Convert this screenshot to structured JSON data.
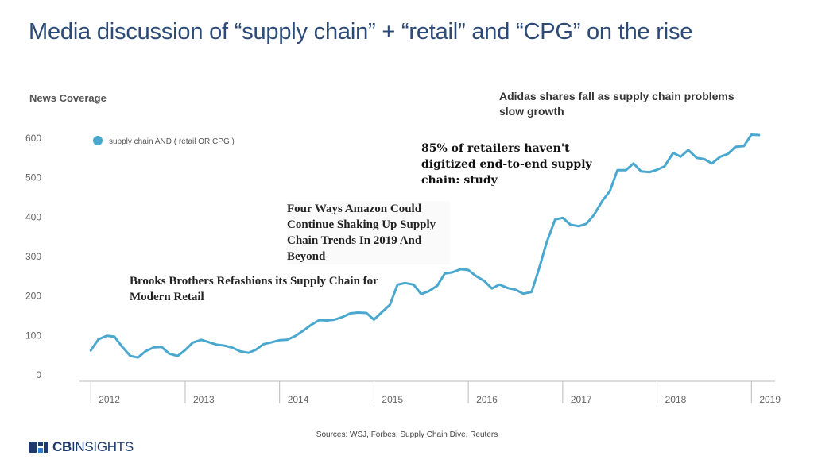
{
  "title": "Media discussion of “supply chain” + “retail” and “CPG” on the rise",
  "annotations": [
    {
      "text": "Brooks Brothers Refashions its Supply Chain for Modern Retail"
    },
    {
      "text": "Four Ways Amazon Could Continue Shaking Up Supply Chain Trends In 2019 And Beyond"
    },
    {
      "text": "85% of retailers haven't digitized end-to-end supply chain: study"
    },
    {
      "text": "Adidas shares fall as supply chain problems slow growth"
    }
  ],
  "sources": "Sources: WSJ, Forbes, Supply Chain Dive, Reuters",
  "logo": {
    "bold": "CB",
    "rest": "INSIGHTS"
  },
  "colors": {
    "title": "#2b4a78",
    "series": "#4aa8cf",
    "axis": "#bbbbbb",
    "tick_text": "#666666"
  },
  "chart_data": {
    "type": "line",
    "title": "",
    "subtitle": "News Coverage",
    "xlabel": "",
    "ylabel": "",
    "ylim": [
      0,
      600
    ],
    "yticks": [
      0,
      100,
      200,
      300,
      400,
      500,
      600
    ],
    "xlim": [
      2011.88,
      2019.25
    ],
    "xticks": [
      2012,
      2013,
      2014,
      2015,
      2016,
      2017,
      2018,
      2019
    ],
    "grid": false,
    "legend": {
      "position": "top-left"
    },
    "series": [
      {
        "name": "supply chain AND ( retail OR CPG )",
        "points": [
          [
            2012.0,
            62
          ],
          [
            2012.08,
            90
          ],
          [
            2012.17,
            99
          ],
          [
            2012.25,
            97
          ],
          [
            2012.33,
            72
          ],
          [
            2012.42,
            48
          ],
          [
            2012.5,
            44
          ],
          [
            2012.58,
            60
          ],
          [
            2012.67,
            70
          ],
          [
            2012.75,
            71
          ],
          [
            2012.83,
            54
          ],
          [
            2012.92,
            48
          ],
          [
            2013.0,
            63
          ],
          [
            2013.08,
            82
          ],
          [
            2013.17,
            89
          ],
          [
            2013.25,
            83
          ],
          [
            2013.33,
            77
          ],
          [
            2013.42,
            74
          ],
          [
            2013.5,
            69
          ],
          [
            2013.58,
            60
          ],
          [
            2013.67,
            56
          ],
          [
            2013.75,
            64
          ],
          [
            2013.83,
            78
          ],
          [
            2013.92,
            83
          ],
          [
            2014.0,
            88
          ],
          [
            2014.08,
            89
          ],
          [
            2014.17,
            99
          ],
          [
            2014.25,
            112
          ],
          [
            2014.33,
            126
          ],
          [
            2014.42,
            139
          ],
          [
            2014.5,
            138
          ],
          [
            2014.58,
            140
          ],
          [
            2014.67,
            147
          ],
          [
            2014.75,
            156
          ],
          [
            2014.83,
            158
          ],
          [
            2014.92,
            157
          ],
          [
            2015.0,
            140
          ],
          [
            2015.08,
            158
          ],
          [
            2015.17,
            178
          ],
          [
            2015.25,
            229
          ],
          [
            2015.33,
            233
          ],
          [
            2015.42,
            229
          ],
          [
            2015.5,
            205
          ],
          [
            2015.58,
            212
          ],
          [
            2015.67,
            226
          ],
          [
            2015.75,
            257
          ],
          [
            2015.83,
            260
          ],
          [
            2015.92,
            268
          ],
          [
            2016.0,
            266
          ],
          [
            2016.08,
            251
          ],
          [
            2016.17,
            238
          ],
          [
            2016.25,
            219
          ],
          [
            2016.33,
            229
          ],
          [
            2016.42,
            220
          ],
          [
            2016.5,
            216
          ],
          [
            2016.58,
            206
          ],
          [
            2016.67,
            210
          ],
          [
            2016.75,
            270
          ],
          [
            2016.83,
            336
          ],
          [
            2016.92,
            394
          ],
          [
            2017.0,
            398
          ],
          [
            2017.08,
            381
          ],
          [
            2017.17,
            377
          ],
          [
            2017.25,
            383
          ],
          [
            2017.33,
            405
          ],
          [
            2017.42,
            441
          ],
          [
            2017.5,
            466
          ],
          [
            2017.58,
            519
          ],
          [
            2017.67,
            519
          ],
          [
            2017.75,
            536
          ],
          [
            2017.83,
            516
          ],
          [
            2017.92,
            514
          ],
          [
            2018.0,
            520
          ],
          [
            2018.08,
            529
          ],
          [
            2018.17,
            563
          ],
          [
            2018.25,
            553
          ],
          [
            2018.33,
            570
          ],
          [
            2018.42,
            550
          ],
          [
            2018.5,
            547
          ],
          [
            2018.58,
            536
          ],
          [
            2018.67,
            553
          ],
          [
            2018.75,
            560
          ],
          [
            2018.83,
            578
          ],
          [
            2018.92,
            580
          ],
          [
            2019.0,
            609
          ],
          [
            2019.08,
            608
          ]
        ]
      }
    ]
  }
}
